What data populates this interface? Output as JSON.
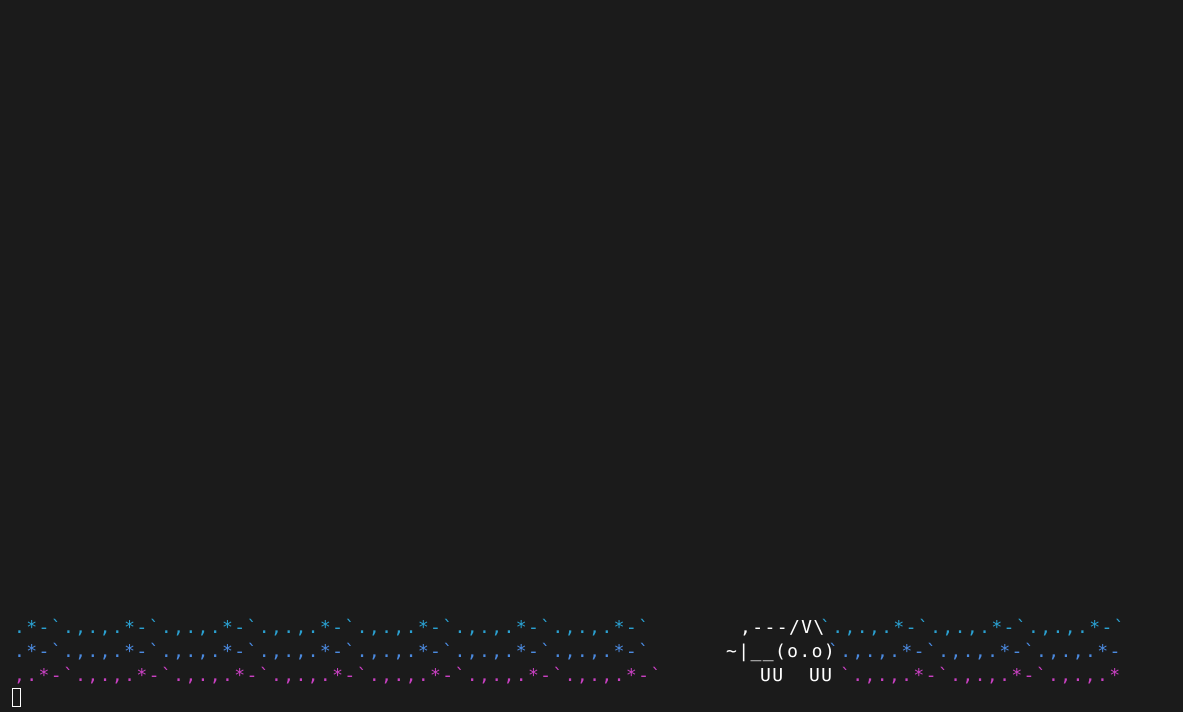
{
  "terminal": {
    "animation": {
      "trail_row_1": {
        "left": ".*-`.,.,.*-`.,.,.*-`.,.,.*-`.,.,.*-`.,.,.*-`.,.,.*-`",
        "right": "`.,.,.*-`.,.,.*-`.,.,.*-`"
      },
      "trail_row_2": {
        "left": ".*-`.,.,.*-`.,.,.*-`.,.,.*-`.,.,.*-`.,.,.*-`.,.,.*-`",
        "right": "`.,.,.*-`.,.,.*-`.,.,.*-"
      },
      "trail_row_3": {
        "left": ",.*-`.,.,.*-`.,.,.*-`.,.,.*-`.,.,.*-`.,.,.*-`.,.,.*-`",
        "right": "`.,.,.*-`.,.,.*-`.,.,.*"
      },
      "cat": {
        "line_1": ",---/V\\",
        "line_2": "~|__(o.o)",
        "line_3": "UU  UU"
      }
    },
    "colors": {
      "background": "#1b1b1b",
      "trail_row_1": "#2aa1d2",
      "trail_row_2": "#4b8ae0",
      "trail_row_3": "#c940c2",
      "cat": "#ffffff",
      "cursor": "#ffffff"
    },
    "cursor": {
      "style": "block-outline"
    }
  }
}
